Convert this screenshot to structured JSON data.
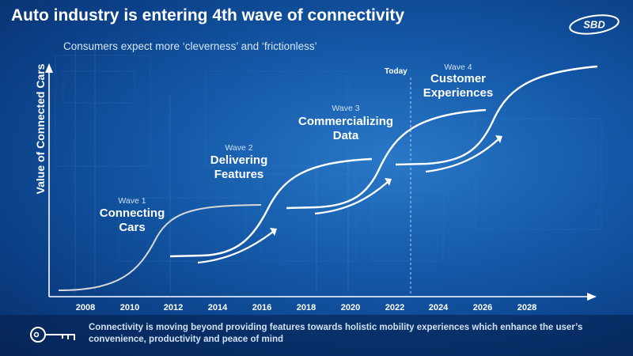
{
  "header": {
    "title": "Auto industry is entering 4th wave of connectivity",
    "subtitle": "Consumers expect more ‘cleverness’ and ‘frictionless’",
    "logo_text": "SBD"
  },
  "diagram": {
    "y_axis_label": "Value of Connected Cars",
    "x_ticks": [
      "2008",
      "2010",
      "2012",
      "2014",
      "2016",
      "2018",
      "2020",
      "2022",
      "2024",
      "2026",
      "2028"
    ],
    "today_label": "Today",
    "waves": [
      {
        "number": "Wave 1",
        "name_line1": "Connecting",
        "name_line2": "Cars"
      },
      {
        "number": "Wave 2",
        "name_line1": "Delivering",
        "name_line2": "Features"
      },
      {
        "number": "Wave 3",
        "name_line1": "Commercializing",
        "name_line2": "Data"
      },
      {
        "number": "Wave 4",
        "name_line1": "Customer",
        "name_line2": "Experiences"
      }
    ]
  },
  "footer": {
    "text": "Connectivity is moving beyond providing features towards holistic mobility experiences which enhance the user’s convenience, productivity and peace of mind"
  }
}
